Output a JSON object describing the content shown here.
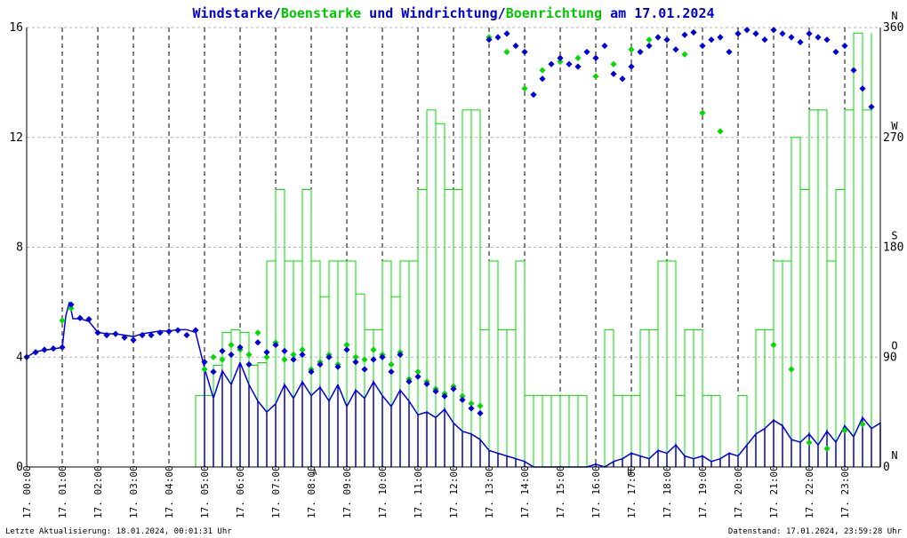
{
  "chart_data": {
    "type": "line",
    "title_parts": [
      {
        "text": "Windstarke",
        "color": "#0000c8"
      },
      {
        "text": "/",
        "color": "#0000c8"
      },
      {
        "text": "Boenstarke",
        "color": "#00c800"
      },
      {
        "text": " und ",
        "color": "#0000c8"
      },
      {
        "text": "Windrichtung",
        "color": "#0000c8"
      },
      {
        "text": "/",
        "color": "#0000c8"
      },
      {
        "text": "Boenrichtung",
        "color": "#00c800"
      },
      {
        "text": " am 17.01.2024",
        "color": "#0000c8"
      }
    ],
    "ylim": [
      0,
      16
    ],
    "yticks": [
      0,
      4,
      8,
      12,
      16
    ],
    "y2lim": [
      0,
      360
    ],
    "y2ticks": [
      0,
      90,
      180,
      270,
      360
    ],
    "y2_letters": [
      {
        "value": 0,
        "text": "N"
      },
      {
        "value": 90,
        "text": "O"
      },
      {
        "value": 180,
        "text": "S"
      },
      {
        "value": 270,
        "text": "W"
      },
      {
        "value": 360,
        "text": "N"
      }
    ],
    "xlim": [
      0,
      24
    ],
    "xtick_labels": [
      "17. 00:00",
      "17. 01:00",
      "17. 02:00",
      "17. 03:00",
      "17. 04:00",
      "17. 05:00",
      "17. 06:00",
      "17. 07:00",
      "17. 08:00",
      "17. 09:00",
      "17. 10:00",
      "17. 11:00",
      "17. 12:00",
      "17. 13:00",
      "17. 14:00",
      "17. 15:00",
      "17. 16:00",
      "17. 17:00",
      "17. 18:00",
      "17. 19:00",
      "17. 20:00",
      "17. 21:00",
      "17. 22:00",
      "17. 23:00"
    ],
    "grid": true,
    "colors": {
      "wind": "#0000dc",
      "gust": "#00dc00",
      "grid": "#b4b4b4",
      "vgrid": "#000000"
    },
    "footer_left": "Letzte Aktualisierung: 18.01.2024, 00:01:31 Uhr",
    "footer_right": "Datenstand: 17.01.2024, 23:59:28 Uhr",
    "markers": [
      {
        "x": 8.1,
        "text": "A"
      },
      {
        "x": 16.95,
        "text": "U"
      }
    ],
    "series": [
      {
        "name": "Windstarke",
        "x": [
          0.0,
          0.25,
          0.5,
          0.75,
          1.0,
          1.1,
          1.2,
          1.3,
          1.5,
          1.75,
          2.0,
          2.25,
          2.5,
          2.75,
          3.0,
          3.25,
          3.5,
          3.75,
          4.0,
          4.25,
          4.5,
          4.75,
          5.0,
          5.25,
          5.5,
          5.75,
          6.0,
          6.25,
          6.5,
          6.75,
          7.0,
          7.25,
          7.5,
          7.75,
          8.0,
          8.25,
          8.5,
          8.75,
          9.0,
          9.25,
          9.5,
          9.75,
          10.0,
          10.25,
          10.5,
          10.75,
          11.0,
          11.25,
          11.5,
          11.75,
          12.0,
          12.25,
          12.5,
          12.75,
          13.0,
          13.25,
          13.5,
          13.75,
          14.0,
          14.25,
          14.5,
          14.75,
          15.0,
          15.25,
          15.5,
          15.75,
          16.0,
          16.25,
          16.5,
          16.75,
          17.0,
          17.25,
          17.5,
          17.75,
          18.0,
          18.25,
          18.5,
          18.75,
          19.0,
          19.25,
          19.5,
          19.75,
          20.0,
          20.25,
          20.5,
          20.75,
          21.0,
          21.25,
          21.5,
          21.75,
          22.0,
          22.25,
          22.5,
          22.75,
          23.0,
          23.25,
          23.5,
          23.75,
          24.0
        ],
        "values": [
          4.0,
          4.2,
          4.25,
          4.3,
          4.35,
          5.5,
          6.0,
          5.4,
          5.4,
          5.3,
          4.9,
          4.85,
          4.85,
          4.8,
          4.75,
          4.85,
          4.9,
          4.95,
          4.95,
          5.0,
          5.0,
          4.9,
          3.6,
          2.5,
          3.5,
          3.0,
          3.8,
          3.0,
          2.4,
          2.0,
          2.3,
          3.0,
          2.5,
          3.1,
          2.6,
          2.9,
          2.4,
          3.0,
          2.2,
          2.8,
          2.5,
          3.1,
          2.6,
          2.2,
          2.8,
          2.4,
          1.9,
          2.0,
          1.8,
          2.1,
          1.6,
          1.3,
          1.2,
          1.0,
          0.6,
          0.5,
          0.4,
          0.3,
          0.2,
          0.0,
          0.0,
          0.0,
          0.0,
          0.0,
          0.0,
          0.0,
          0.1,
          0.0,
          0.2,
          0.3,
          0.5,
          0.4,
          0.3,
          0.6,
          0.5,
          0.8,
          0.4,
          0.3,
          0.4,
          0.2,
          0.3,
          0.5,
          0.4,
          0.8,
          1.2,
          1.4,
          1.7,
          1.5,
          1.0,
          0.9,
          1.2,
          0.8,
          1.3,
          0.9,
          1.5,
          1.1,
          1.8,
          1.4,
          1.6
        ]
      },
      {
        "name": "Boenstarke",
        "x": [
          4.75,
          5.0,
          5.25,
          5.5,
          5.75,
          6.0,
          6.25,
          6.5,
          6.75,
          7.0,
          7.25,
          7.5,
          7.75,
          8.0,
          8.25,
          8.5,
          8.75,
          9.0,
          9.25,
          9.5,
          9.75,
          10.0,
          10.25,
          10.5,
          10.75,
          11.0,
          11.25,
          11.5,
          11.75,
          12.0,
          12.25,
          12.5,
          12.75,
          13.0,
          13.25,
          13.5,
          13.75,
          14.0,
          14.25,
          14.5,
          14.75,
          15.0,
          15.25,
          15.5,
          15.75,
          16.0,
          16.25,
          16.5,
          16.75,
          17.0,
          17.25,
          17.5,
          17.75,
          18.0,
          18.25,
          18.5,
          18.75,
          19.0,
          19.25,
          19.5,
          19.75,
          20.0,
          20.25,
          20.5,
          20.75,
          21.0,
          21.25,
          21.5,
          21.75,
          22.0,
          22.25,
          22.5,
          22.75,
          23.0,
          23.25,
          23.5,
          23.75
        ],
        "values": [
          2.6,
          2.6,
          3.7,
          4.9,
          5.0,
          4.9,
          3.7,
          3.8,
          7.5,
          10.1,
          7.5,
          7.5,
          10.1,
          7.5,
          6.2,
          7.5,
          7.5,
          7.5,
          6.3,
          5.0,
          5.0,
          7.5,
          6.2,
          7.5,
          7.5,
          10.1,
          13.0,
          12.5,
          10.1,
          10.1,
          13.0,
          13.0,
          5.0,
          7.5,
          5.0,
          5.0,
          7.5,
          2.6,
          2.6,
          2.6,
          2.6,
          2.6,
          2.6,
          2.6,
          0.0,
          0.0,
          5.0,
          2.6,
          2.6,
          2.6,
          5.0,
          5.0,
          7.5,
          7.5,
          2.6,
          5.0,
          5.0,
          2.6,
          2.6,
          0.0,
          0.0,
          2.6,
          0.0,
          5.0,
          5.0,
          7.5,
          7.5,
          12.0,
          10.1,
          13.0,
          13.0,
          7.5,
          10.1,
          13.0,
          15.8,
          13.0,
          15.8
        ]
      },
      {
        "name": "Windrichtung",
        "x": [
          0.0,
          0.25,
          0.5,
          0.75,
          1.0,
          1.25,
          1.5,
          1.75,
          2.0,
          2.25,
          2.5,
          2.75,
          3.0,
          3.25,
          3.5,
          3.75,
          4.0,
          4.25,
          4.5,
          4.75,
          5.0,
          5.25,
          5.5,
          5.75,
          6.0,
          6.25,
          6.5,
          6.75,
          7.0,
          7.25,
          7.5,
          7.75,
          8.0,
          8.25,
          8.5,
          8.75,
          9.0,
          9.25,
          9.5,
          9.75,
          10.0,
          10.25,
          10.5,
          10.75,
          11.0,
          11.25,
          11.5,
          11.75,
          12.0,
          12.25,
          12.5,
          12.75,
          13.0,
          13.25,
          13.5,
          13.75,
          14.0,
          14.25,
          14.5,
          14.75,
          15.0,
          15.25,
          15.5,
          15.75,
          16.0,
          16.25,
          16.5,
          16.75,
          17.0,
          17.25,
          17.5,
          17.75,
          18.0,
          18.25,
          18.5,
          18.75,
          19.0,
          19.25,
          19.5,
          19.75,
          20.0,
          20.25,
          20.5,
          20.75,
          21.0,
          21.25,
          21.5,
          21.75,
          22.0,
          22.25,
          22.5,
          22.75,
          23.0,
          23.25,
          23.5,
          23.75
        ],
        "values": [
          90,
          94,
          96,
          97,
          98,
          133,
          122,
          121,
          110,
          108,
          109,
          106,
          104,
          108,
          108,
          110,
          111,
          112,
          108,
          112,
          86,
          78,
          95,
          92,
          98,
          84,
          102,
          94,
          100,
          95,
          88,
          92,
          78,
          84,
          90,
          82,
          96,
          86,
          80,
          88,
          90,
          78,
          92,
          70,
          74,
          68,
          62,
          58,
          64,
          55,
          48,
          44,
          350,
          352,
          355,
          345,
          340,
          305,
          318,
          330,
          335,
          330,
          328,
          340,
          335,
          345,
          322,
          318,
          328,
          340,
          345,
          352,
          350,
          342,
          354,
          356,
          345,
          350,
          352,
          340,
          355,
          358,
          355,
          350,
          358,
          355,
          352,
          348,
          355,
          352,
          350,
          340,
          345,
          325,
          310,
          295
        ]
      },
      {
        "name": "Boenrichtung",
        "x": [
          1.0,
          1.25,
          5.0,
          5.25,
          5.5,
          5.75,
          6.0,
          6.25,
          6.5,
          6.75,
          7.0,
          7.25,
          7.5,
          7.75,
          8.0,
          8.25,
          8.5,
          8.75,
          9.0,
          9.25,
          9.5,
          9.75,
          10.0,
          10.25,
          10.5,
          10.75,
          11.0,
          11.25,
          11.5,
          11.75,
          12.0,
          12.25,
          12.5,
          12.75,
          13.0,
          13.5,
          14.0,
          14.5,
          15.0,
          15.5,
          16.0,
          16.5,
          17.0,
          17.5,
          18.0,
          18.5,
          19.0,
          19.5,
          20.0,
          20.5,
          21.0,
          21.5,
          22.0,
          22.5,
          23.0,
          23.5
        ],
        "values": [
          120,
          130,
          80,
          90,
          88,
          100,
          96,
          92,
          110,
          90,
          102,
          88,
          92,
          96,
          80,
          86,
          92,
          84,
          100,
          90,
          88,
          96,
          92,
          84,
          94,
          72,
          78,
          70,
          64,
          60,
          66,
          58,
          52,
          50,
          352,
          340,
          310,
          325,
          332,
          335,
          320,
          330,
          342,
          350,
          350,
          338,
          290,
          275,
          355,
          355,
          100,
          80,
          20,
          15,
          30,
          35
        ]
      }
    ]
  }
}
